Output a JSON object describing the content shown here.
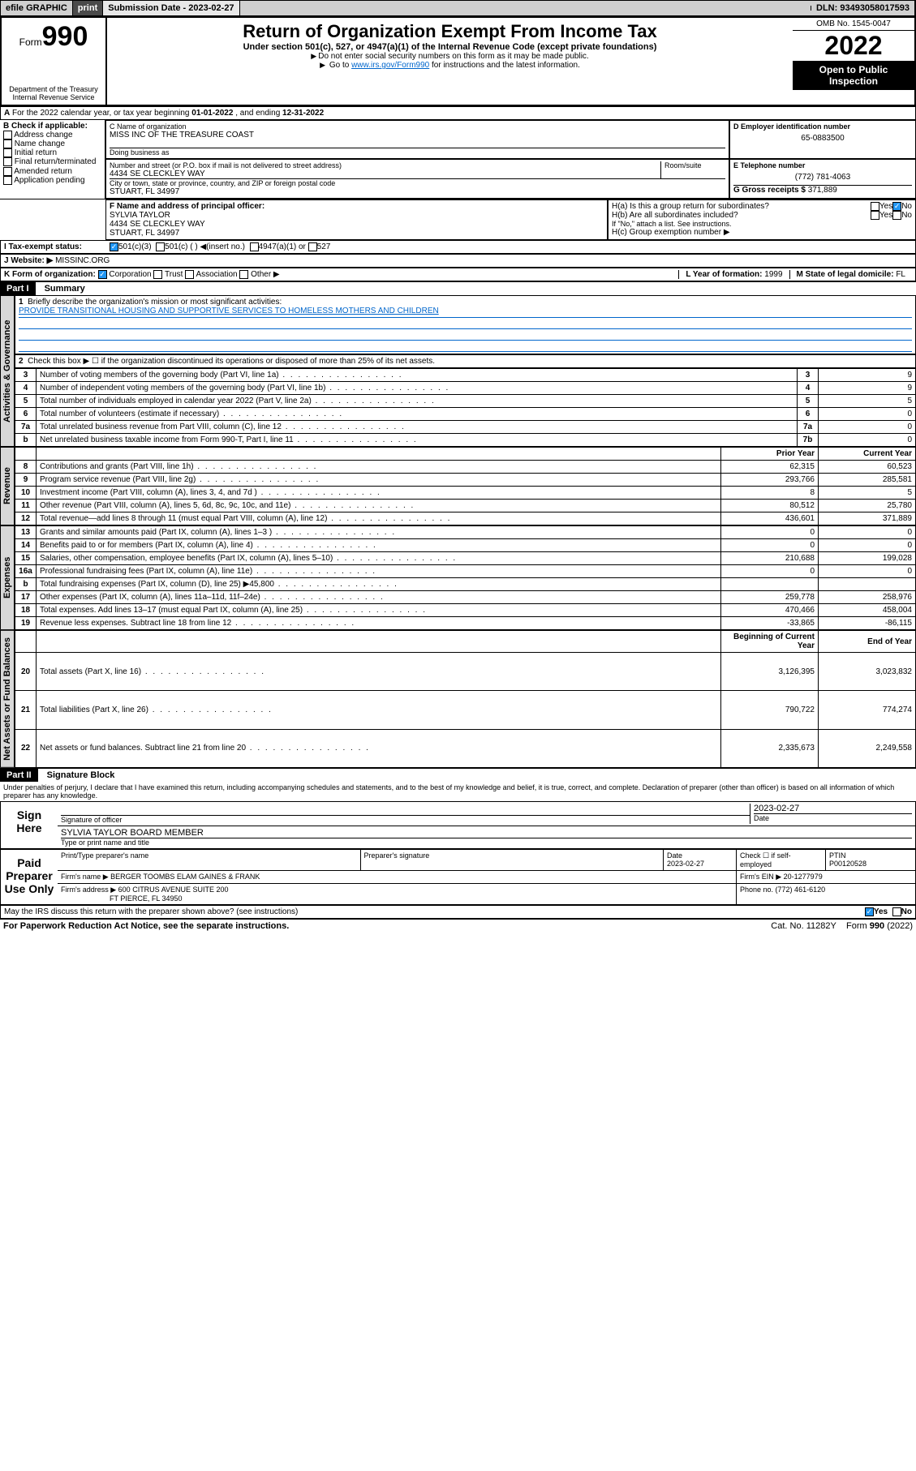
{
  "header_bar": {
    "efile": "efile GRAPHIC",
    "print": "print",
    "sub_lbl": "Submission Date - ",
    "sub_date": "2023-02-27",
    "dln_lbl": "DLN: ",
    "dln": "93493058017593"
  },
  "form_header": {
    "form_word": "Form",
    "form_num": "990",
    "dept": "Department of the Treasury",
    "irs": "Internal Revenue Service",
    "title": "Return of Organization Exempt From Income Tax",
    "subtitle": "Under section 501(c), 527, or 4947(a)(1) of the Internal Revenue Code (except private foundations)",
    "inst1": "Do not enter social security numbers on this form as it may be made public.",
    "inst2_a": "Go to ",
    "inst2_link": "www.irs.gov/Form990",
    "inst2_b": " for instructions and the latest information.",
    "omb": "OMB No. 1545-0047",
    "year": "2022",
    "open_pub": "Open to Public Inspection"
  },
  "line_a": {
    "prefix": "A",
    "text_a": "For the 2022 calendar year, or tax year beginning ",
    "begin": "01-01-2022",
    "text_b": " , and ending ",
    "end": "12-31-2022"
  },
  "sec_b": {
    "hdr": "B Check if applicable:",
    "opts": [
      "Address change",
      "Name change",
      "Initial return",
      "Final return/terminated",
      "Amended return",
      "Application pending"
    ]
  },
  "sec_c": {
    "lbl": "C Name of organization",
    "name": "MISS INC OF THE TREASURE COAST",
    "dba_lbl": "Doing business as",
    "addr_lbl": "Number and street (or P.O. box if mail is not delivered to street address)",
    "room_lbl": "Room/suite",
    "addr": "4434 SE CLECKLEY WAY",
    "city_lbl": "City or town, state or province, country, and ZIP or foreign postal code",
    "city": "STUART, FL  34997"
  },
  "sec_d": {
    "lbl": "D Employer identification number",
    "val": "65-0883500"
  },
  "sec_e": {
    "lbl": "E Telephone number",
    "val": "(772) 781-4063"
  },
  "sec_g": {
    "lbl": "G Gross receipts $ ",
    "val": "371,889"
  },
  "sec_f": {
    "lbl": "F Name and address of principal officer:",
    "name": "SYLVIA TAYLOR",
    "addr1": "4434 SE CLECKLEY WAY",
    "addr2": "STUART, FL  34997"
  },
  "sec_h": {
    "ha": "H(a)  Is this a group return for subordinates?",
    "hb": "H(b)  Are all subordinates included?",
    "hb_note": "If \"No,\" attach a list. See instructions.",
    "hc": "H(c)  Group exemption number ▶",
    "yes": "Yes",
    "no": "No"
  },
  "sec_i": {
    "lbl": "I    Tax-exempt status:",
    "o1": "501(c)(3)",
    "o2": "501(c) (   ) ◀(insert no.)",
    "o3": "4947(a)(1) or",
    "o4": "527"
  },
  "sec_j": {
    "lbl": "J    Website: ▶",
    "val": "MISSINC.ORG"
  },
  "sec_k": {
    "lbl": "K Form of organization:",
    "o1": "Corporation",
    "o2": "Trust",
    "o3": "Association",
    "o4": "Other ▶"
  },
  "sec_l": {
    "lbl": "L Year of formation: ",
    "val": "1999"
  },
  "sec_m": {
    "lbl": "M State of legal domicile: ",
    "val": "FL"
  },
  "part1": {
    "hdr": "Part I",
    "title": "Summary",
    "q1": "Briefly describe the organization's mission or most significant activities:",
    "mission": "PROVIDE TRANSITIONAL HOUSING AND SUPPORTIVE SERVICES TO HOMELESS MOTHERS AND CHILDREN",
    "q2": "Check this box ▶ ☐  if the organization discontinued its operations or disposed of more than 25% of its net assets.",
    "vert_ag": "Activities & Governance",
    "vert_rev": "Revenue",
    "vert_exp": "Expenses",
    "vert_net": "Net Assets or Fund Balances",
    "rows_ag": [
      {
        "n": "3",
        "t": "Number of voting members of the governing body (Part VI, line 1a)",
        "b": "3",
        "v": "9"
      },
      {
        "n": "4",
        "t": "Number of independent voting members of the governing body (Part VI, line 1b)",
        "b": "4",
        "v": "9"
      },
      {
        "n": "5",
        "t": "Total number of individuals employed in calendar year 2022 (Part V, line 2a)",
        "b": "5",
        "v": "5"
      },
      {
        "n": "6",
        "t": "Total number of volunteers (estimate if necessary)",
        "b": "6",
        "v": "0"
      },
      {
        "n": "7a",
        "t": "Total unrelated business revenue from Part VIII, column (C), line 12",
        "b": "7a",
        "v": "0"
      },
      {
        "n": "b",
        "t": "Net unrelated business taxable income from Form 990-T, Part I, line 11",
        "b": "7b",
        "v": "0"
      }
    ],
    "col_prior": "Prior Year",
    "col_curr": "Current Year",
    "rows_rev": [
      {
        "n": "8",
        "t": "Contributions and grants (Part VIII, line 1h)",
        "p": "62,315",
        "c": "60,523"
      },
      {
        "n": "9",
        "t": "Program service revenue (Part VIII, line 2g)",
        "p": "293,766",
        "c": "285,581"
      },
      {
        "n": "10",
        "t": "Investment income (Part VIII, column (A), lines 3, 4, and 7d )",
        "p": "8",
        "c": "5"
      },
      {
        "n": "11",
        "t": "Other revenue (Part VIII, column (A), lines 5, 6d, 8c, 9c, 10c, and 11e)",
        "p": "80,512",
        "c": "25,780"
      },
      {
        "n": "12",
        "t": "Total revenue—add lines 8 through 11 (must equal Part VIII, column (A), line 12)",
        "p": "436,601",
        "c": "371,889"
      }
    ],
    "rows_exp": [
      {
        "n": "13",
        "t": "Grants and similar amounts paid (Part IX, column (A), lines 1–3 )",
        "p": "0",
        "c": "0"
      },
      {
        "n": "14",
        "t": "Benefits paid to or for members (Part IX, column (A), line 4)",
        "p": "0",
        "c": "0"
      },
      {
        "n": "15",
        "t": "Salaries, other compensation, employee benefits (Part IX, column (A), lines 5–10)",
        "p": "210,688",
        "c": "199,028"
      },
      {
        "n": "16a",
        "t": "Professional fundraising fees (Part IX, column (A), line 11e)",
        "p": "0",
        "c": "0"
      },
      {
        "n": "b",
        "t": "Total fundraising expenses (Part IX, column (D), line 25) ▶45,800",
        "p": "",
        "c": ""
      },
      {
        "n": "17",
        "t": "Other expenses (Part IX, column (A), lines 11a–11d, 11f–24e)",
        "p": "259,778",
        "c": "258,976"
      },
      {
        "n": "18",
        "t": "Total expenses. Add lines 13–17 (must equal Part IX, column (A), line 25)",
        "p": "470,466",
        "c": "458,004"
      },
      {
        "n": "19",
        "t": "Revenue less expenses. Subtract line 18 from line 12",
        "p": "-33,865",
        "c": "-86,115"
      }
    ],
    "col_begin": "Beginning of Current Year",
    "col_end": "End of Year",
    "rows_net": [
      {
        "n": "20",
        "t": "Total assets (Part X, line 16)",
        "p": "3,126,395",
        "c": "3,023,832"
      },
      {
        "n": "21",
        "t": "Total liabilities (Part X, line 26)",
        "p": "790,722",
        "c": "774,274"
      },
      {
        "n": "22",
        "t": "Net assets or fund balances. Subtract line 21 from line 20",
        "p": "2,335,673",
        "c": "2,249,558"
      }
    ]
  },
  "part2": {
    "hdr": "Part II",
    "title": "Signature Block",
    "decl": "Under penalties of perjury, I declare that I have examined this return, including accompanying schedules and statements, and to the best of my knowledge and belief, it is true, correct, and complete. Declaration of preparer (other than officer) is based on all information of which preparer has any knowledge.",
    "sign_here": "Sign Here",
    "sig_officer": "Signature of officer",
    "date_lbl": "Date",
    "sig_date": "2023-02-27",
    "officer_name": "SYLVIA TAYLOR  BOARD MEMBER",
    "type_name": "Type or print name and title",
    "paid_prep": "Paid Preparer Use Only",
    "prep_name_lbl": "Print/Type preparer's name",
    "prep_sig_lbl": "Preparer's signature",
    "prep_date": "2023-02-27",
    "self_emp": "Check ☐ if self-employed",
    "ptin_lbl": "PTIN",
    "ptin": "P00120528",
    "firm_name_lbl": "Firm's name    ▶",
    "firm_name": "BERGER TOOMBS ELAM GAINES & FRANK",
    "firm_ein_lbl": "Firm's EIN ▶",
    "firm_ein": "20-1277979",
    "firm_addr_lbl": "Firm's address ▶",
    "firm_addr1": "600 CITRUS AVENUE SUITE 200",
    "firm_addr2": "FT PIERCE, FL  34950",
    "phone_lbl": "Phone no. ",
    "phone": "(772) 461-6120",
    "discuss": "May the IRS discuss this return with the preparer shown above? (see instructions)",
    "yes": "Yes",
    "no": "No"
  },
  "footer": {
    "pra": "For Paperwork Reduction Act Notice, see the separate instructions.",
    "cat": "Cat. No. 11282Y",
    "form": "Form 990 (2022)"
  }
}
